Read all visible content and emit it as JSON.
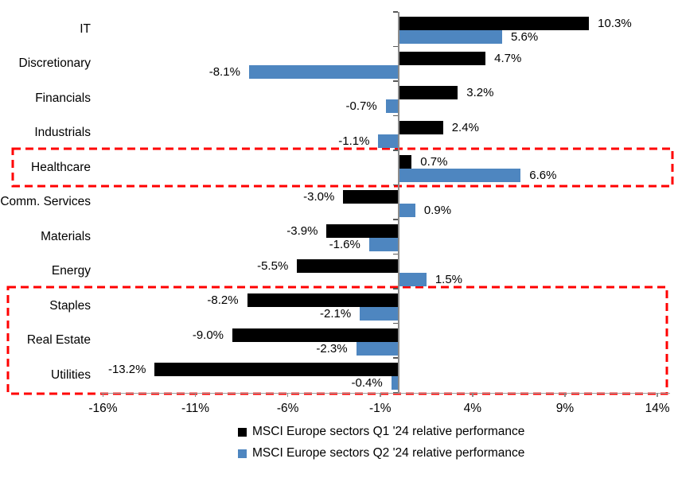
{
  "chart_data": {
    "type": "bar",
    "orientation": "horizontal",
    "title": "",
    "categories": [
      "IT",
      "Discretionary",
      "Financials",
      "Industrials",
      "Healthcare",
      "Comm. Services",
      "Materials",
      "Energy",
      "Staples",
      "Real Estate",
      "Utilities"
    ],
    "series": [
      {
        "name": "MSCI Europe sectors Q1 '24 relative performance",
        "color": "#000000",
        "values": [
          10.3,
          4.7,
          3.2,
          2.4,
          0.7,
          -3.0,
          -3.9,
          -5.5,
          -8.2,
          -9.0,
          -13.2
        ],
        "labels": [
          "10.3%",
          "4.7%",
          "3.2%",
          "2.4%",
          "0.7%",
          "-3.0%",
          "-3.9%",
          "-5.5%",
          "-8.2%",
          "-9.0%",
          "-13.2%"
        ]
      },
      {
        "name": "MSCI Europe sectors Q2 '24 relative performance",
        "color": "#4e86c0",
        "values": [
          5.6,
          -8.1,
          -0.7,
          -1.1,
          6.6,
          0.9,
          -1.6,
          1.5,
          -2.1,
          -2.3,
          -0.4
        ],
        "labels": [
          "5.6%",
          "-8.1%",
          "-0.7%",
          "-1.1%",
          "6.6%",
          "0.9%",
          "-1.6%",
          "1.5%",
          "-2.1%",
          "-2.3%",
          "-0.4%"
        ]
      }
    ],
    "x_axis": {
      "unit": "%",
      "min": -16,
      "max": 14,
      "tick_values": [
        -16,
        -11,
        -6,
        -1,
        4,
        9,
        14
      ],
      "tick_labels": [
        "-16%",
        "-11%",
        "-6%",
        "-1%",
        "4%",
        "9%",
        "14%"
      ]
    },
    "legend_position": "bottom",
    "grid": false,
    "highlights": [
      {
        "name": "healthcare-highlight",
        "rows": [
          "Healthcare"
        ],
        "row_start": 4,
        "row_end": 4,
        "color": "#ff0000",
        "style": "dashed"
      },
      {
        "name": "defensives-highlight",
        "rows": [
          "Staples",
          "Real Estate",
          "Utilities"
        ],
        "row_start": 8,
        "row_end": 10,
        "color": "#ff0000",
        "style": "dashed"
      }
    ]
  }
}
